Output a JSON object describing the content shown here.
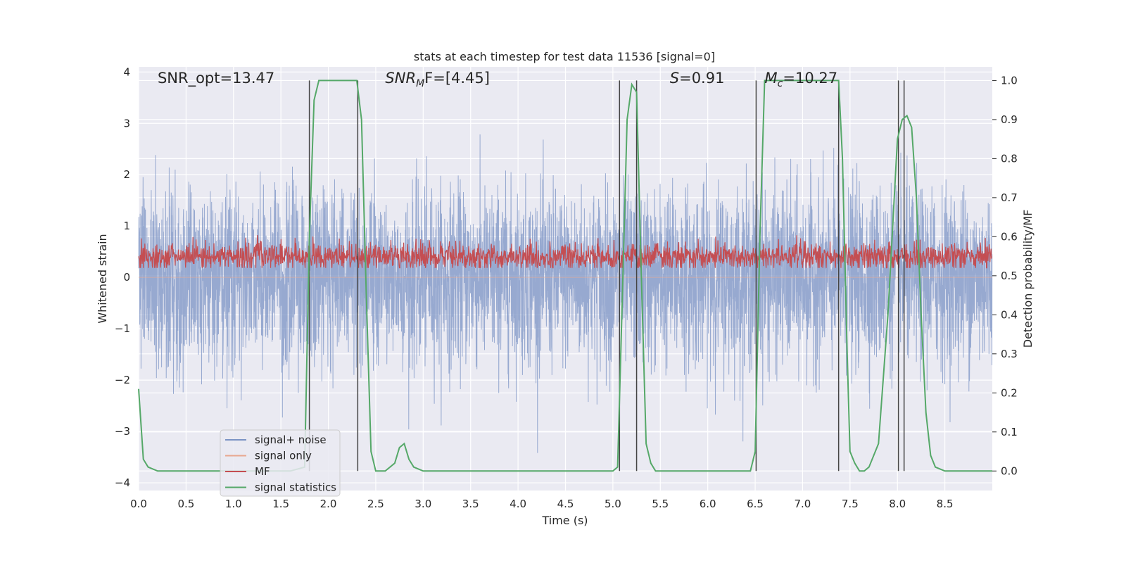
{
  "chart_data": {
    "type": "line",
    "title": "stats at each timestep for test data 11536 [signal=0]",
    "xlabel": "Time (s)",
    "ylabel_left": "Whitened strain",
    "ylabel_right": "Detection probability/MF",
    "xlim": [
      0,
      9
    ],
    "ylim_left": [
      -4.15,
      4.1
    ],
    "ylim_right": [
      -0.05,
      1.035
    ],
    "x_ticks": [
      0.0,
      0.5,
      1.0,
      1.5,
      2.0,
      2.5,
      3.0,
      3.5,
      4.0,
      4.5,
      5.0,
      5.5,
      6.0,
      6.5,
      7.0,
      7.5,
      8.0,
      8.5
    ],
    "x_tick_labels": [
      "0.0",
      "0.5",
      "1.0",
      "1.5",
      "2.0",
      "2.5",
      "3.0",
      "3.5",
      "4.0",
      "4.5",
      "5.0",
      "5.5",
      "6.0",
      "6.5",
      "7.0",
      "7.5",
      "8.0",
      "8.5"
    ],
    "y_left_ticks": [
      -4,
      -3,
      -2,
      -1,
      0,
      1,
      2,
      3,
      4
    ],
    "y_left_tick_labels": [
      "−4",
      "−3",
      "−2",
      "−1",
      "0",
      "1",
      "2",
      "3",
      "4"
    ],
    "y_right_ticks": [
      0.0,
      0.1,
      0.2,
      0.3,
      0.4,
      0.5,
      0.6,
      0.7,
      0.8,
      0.9,
      1.0
    ],
    "y_right_tick_labels": [
      "0.0",
      "0.1",
      "0.2",
      "0.3",
      "0.4",
      "0.5",
      "0.6",
      "0.7",
      "0.8",
      "0.9",
      "1.0"
    ],
    "grid": true,
    "legend_position": "lower-left",
    "annotations": [
      {
        "text": "SNR_opt=13.47",
        "x": 0.2,
        "italic_prefix": false
      },
      {
        "prefix": "SNR",
        "sub": "M",
        "suffix": "F=[4.45]",
        "x": 2.6
      },
      {
        "prefix": "S",
        "sub": "",
        "suffix": "=0.91",
        "x": 5.6
      },
      {
        "prefix": "M",
        "sub": "c",
        "suffix": "=10.27",
        "x": 6.6
      }
    ],
    "annotation_y": 3.87,
    "series": [
      {
        "name": "signal+ noise",
        "axis": "left",
        "color": "#7b93c4",
        "kind": "noise",
        "std": 0.85,
        "sample_rate": 512
      },
      {
        "name": "signal only",
        "axis": "left",
        "color": "#e8a78f",
        "kind": "flat",
        "value": 0
      },
      {
        "name": "MF",
        "axis": "right",
        "color": "#c44e52",
        "kind": "noise-band",
        "mean": 0.55,
        "std": 0.018,
        "min": 0.52,
        "max": 0.62
      },
      {
        "name": "signal statistics",
        "axis": "right",
        "color": "#55a868",
        "kind": "curve",
        "x": [
          0.0,
          0.05,
          0.1,
          0.2,
          0.3,
          0.5,
          0.7,
          1.0,
          1.3,
          1.6,
          1.75,
          1.8,
          1.85,
          1.9,
          2.0,
          2.1,
          2.2,
          2.3,
          2.35,
          2.4,
          2.45,
          2.5,
          2.6,
          2.7,
          2.75,
          2.8,
          2.85,
          2.9,
          3.0,
          3.3,
          3.6,
          4.0,
          4.5,
          5.0,
          5.05,
          5.1,
          5.15,
          5.2,
          5.25,
          5.3,
          5.35,
          5.4,
          5.45,
          5.5,
          5.7,
          6.0,
          6.3,
          6.45,
          6.5,
          6.55,
          6.6,
          6.7,
          6.9,
          7.1,
          7.3,
          7.38,
          7.42,
          7.47,
          7.5,
          7.55,
          7.6,
          7.65,
          7.7,
          7.8,
          7.9,
          8.0,
          8.05,
          8.1,
          8.15,
          8.2,
          8.25,
          8.3,
          8.35,
          8.4,
          8.5,
          8.7,
          9.0
        ],
        "y": [
          0.21,
          0.03,
          0.01,
          0.0,
          0.0,
          0.0,
          0.0,
          0.0,
          0.0,
          0.0,
          0.01,
          0.6,
          0.95,
          1.0,
          1.0,
          1.0,
          1.0,
          1.0,
          0.9,
          0.45,
          0.05,
          0.0,
          0.0,
          0.02,
          0.06,
          0.07,
          0.03,
          0.01,
          0.0,
          0.0,
          0.0,
          0.0,
          0.0,
          0.0,
          0.01,
          0.45,
          0.9,
          0.99,
          0.97,
          0.5,
          0.07,
          0.02,
          0.0,
          0.0,
          0.0,
          0.0,
          0.0,
          0.0,
          0.05,
          0.6,
          1.0,
          1.0,
          1.0,
          1.0,
          1.0,
          1.0,
          0.8,
          0.3,
          0.05,
          0.02,
          0.0,
          0.0,
          0.01,
          0.07,
          0.4,
          0.85,
          0.9,
          0.91,
          0.88,
          0.7,
          0.4,
          0.15,
          0.04,
          0.01,
          0.0,
          0.0,
          0.0
        ]
      }
    ],
    "vertical_markers": {
      "color": "#444444",
      "axis": "right",
      "y_range": [
        0.0,
        1.0
      ],
      "x": [
        1.8,
        2.31,
        5.07,
        5.25,
        6.51,
        7.38,
        8.01,
        8.07
      ]
    }
  }
}
